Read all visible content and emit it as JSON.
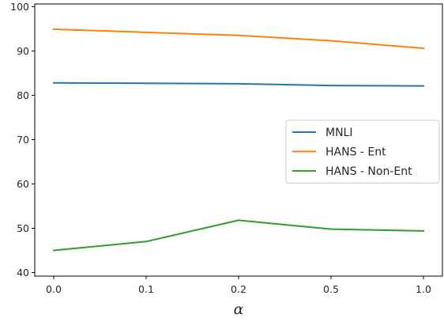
{
  "chart_data": {
    "type": "line",
    "title": "",
    "xlabel": "α",
    "ylabel": "",
    "categories": [
      "0.0",
      "0.1",
      "0.2",
      "0.5",
      "1.0"
    ],
    "ylim": [
      39.2,
      100.6
    ],
    "yticks": [
      40,
      50,
      60,
      70,
      80,
      90,
      100
    ],
    "grid": false,
    "legend_position": "center-right",
    "series": [
      {
        "name": "MNLI",
        "color": "#1f77b4",
        "values": [
          82.8,
          82.7,
          82.6,
          82.2,
          82.1
        ]
      },
      {
        "name": "HANS - Ent",
        "color": "#ff7f0e",
        "values": [
          94.9,
          94.2,
          93.5,
          92.3,
          90.6
        ]
      },
      {
        "name": "HANS - Non-Ent",
        "color": "#2ca02c",
        "values": [
          45.0,
          47.0,
          51.8,
          49.8,
          49.4
        ]
      }
    ]
  }
}
